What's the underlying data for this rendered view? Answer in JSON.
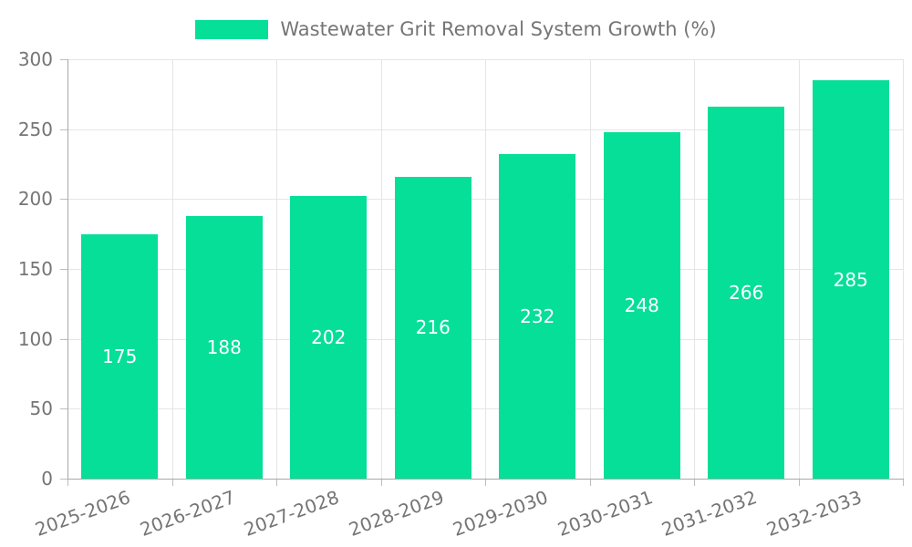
{
  "chart_data": {
    "type": "bar",
    "title": "Wastewater Grit Removal System Growth (%)",
    "xlabel": "",
    "ylabel": "",
    "categories": [
      "2025-2026",
      "2026-2027",
      "2027-2028",
      "2028-2029",
      "2029-2030",
      "2030-2031",
      "2031-2032",
      "2032-2033"
    ],
    "values": [
      175,
      188,
      202,
      216,
      232,
      248,
      266,
      285
    ],
    "ylim": [
      0,
      300
    ],
    "yticks": [
      0,
      50,
      100,
      150,
      200,
      250,
      300
    ],
    "grid": true,
    "legend_position": "top-center",
    "bar_color": "#06df97",
    "value_label_color": "#ffffff",
    "axis_text_color": "#757575",
    "grid_color": "#e5e5e5",
    "axis_line_color": "#a8a8a8"
  }
}
